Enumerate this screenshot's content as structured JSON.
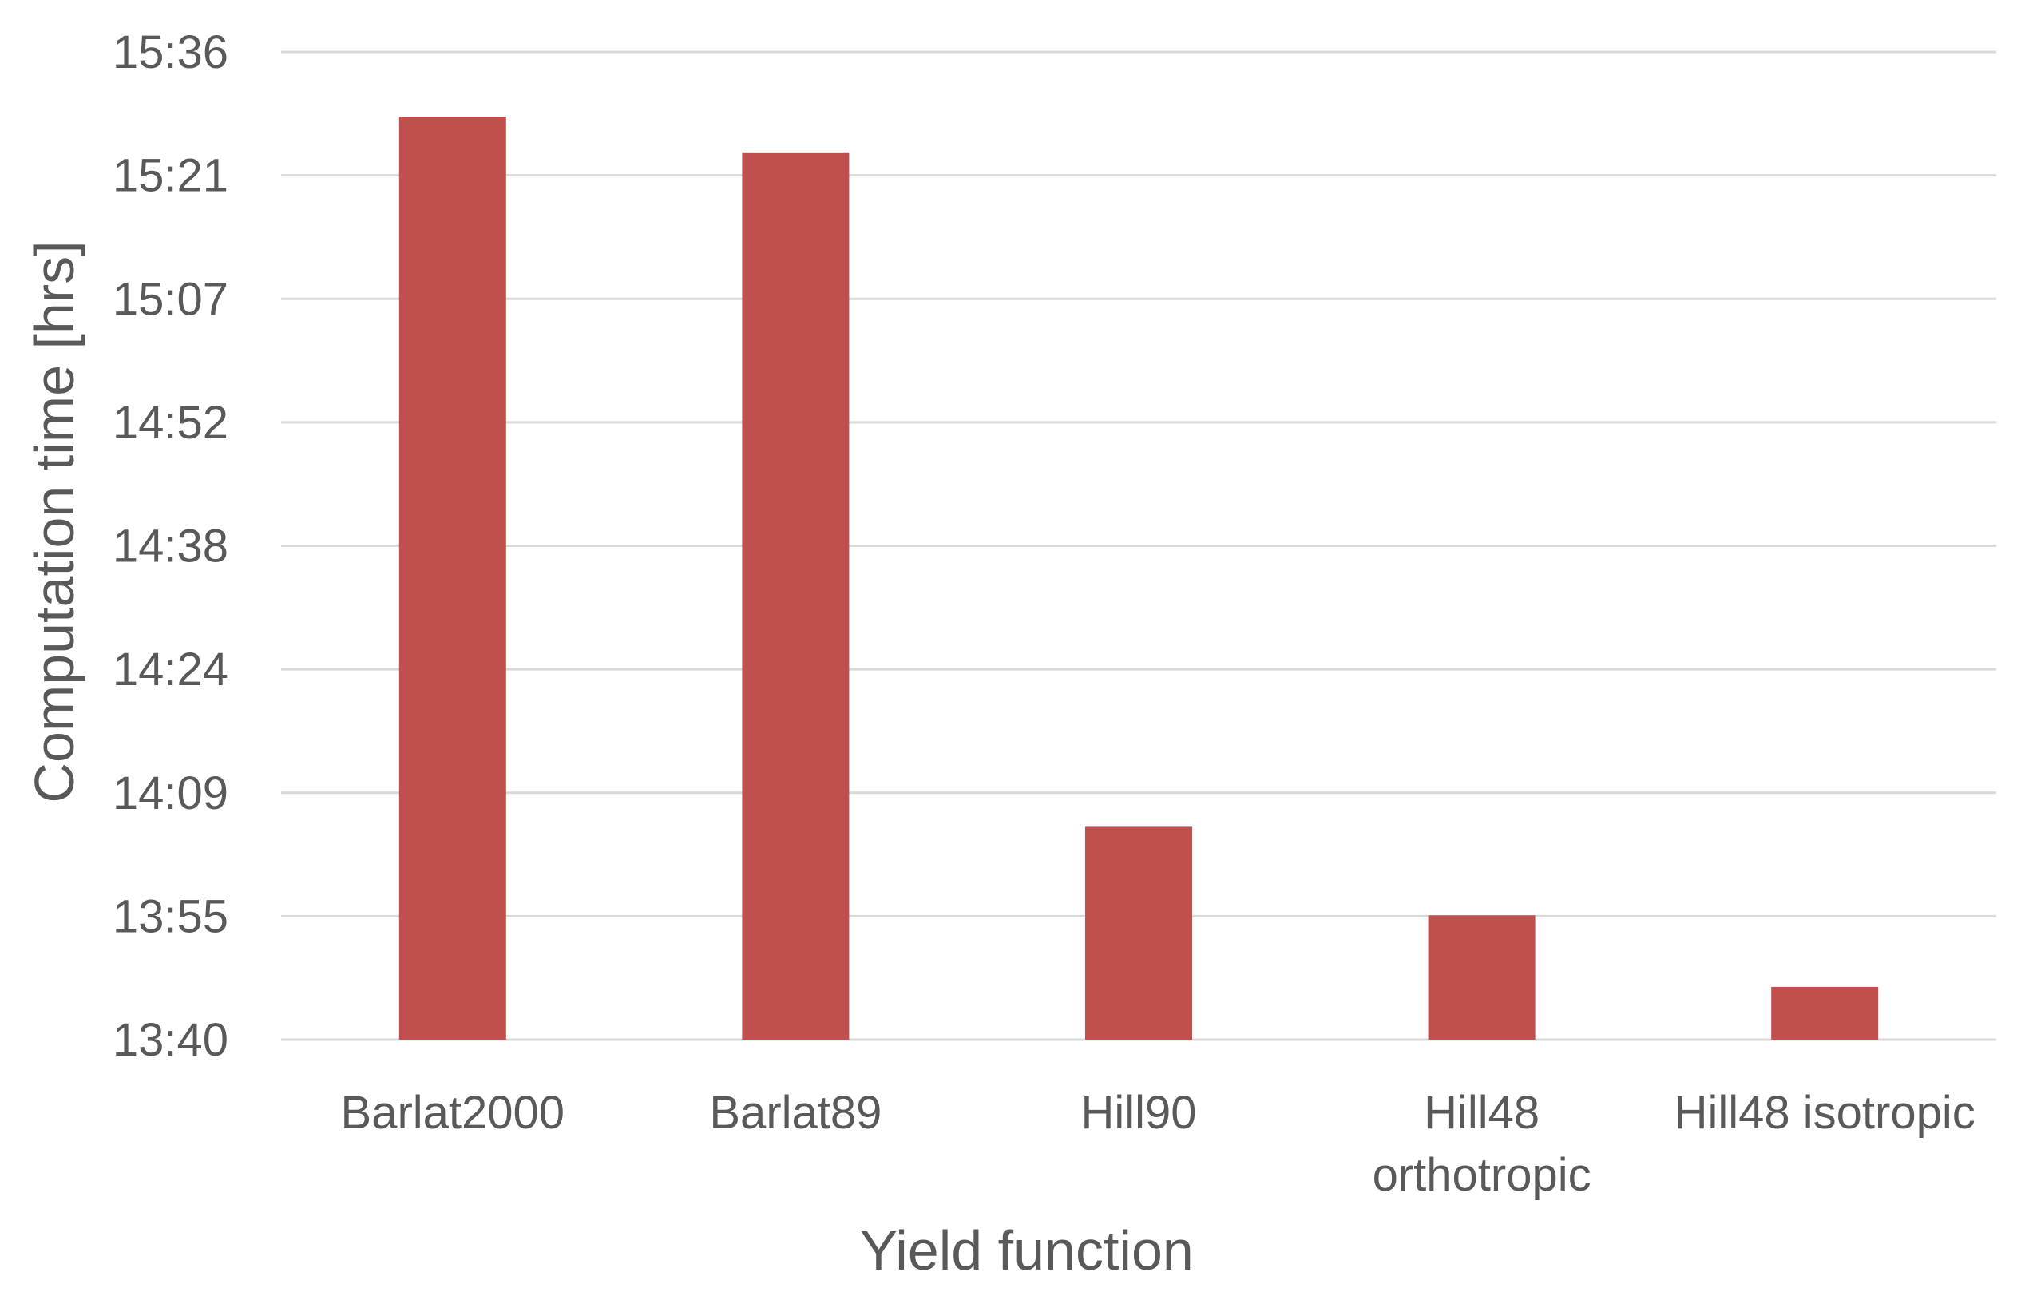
{
  "chart_data": {
    "type": "bar",
    "title": "",
    "xlabel": "Yield function",
    "ylabel": "Computation time [hrs]",
    "categories": [
      [
        "Barlat2000"
      ],
      [
        "Barlat89"
      ],
      [
        "Hill90"
      ],
      [
        "Hill48",
        "orthotropic"
      ],
      [
        "Hill48 isotropic"
      ]
    ],
    "category_names": [
      "Barlat2000",
      "Barlat89",
      "Hill90",
      "Hill48 orthotropic",
      "Hill48 isotropic"
    ],
    "values_minutes": [
      928.4,
      924.2,
      845.0,
      834.6,
      826.2
    ],
    "values": [
      "15:28",
      "15:24",
      "14:05",
      "13:55",
      "13:46"
    ],
    "ylim_minutes": [
      820,
      936
    ],
    "yticks_minutes": [
      820,
      834.5,
      849,
      863.5,
      878,
      892.5,
      907,
      921.5,
      936
    ],
    "ytick_labels": [
      "13:40",
      "13:55",
      "14:09",
      "14:24",
      "14:38",
      "14:52",
      "15:07",
      "15:21",
      "15:36"
    ],
    "grid": true,
    "legend": "none",
    "bar_color": "#c0504d",
    "grid_color": "#d9d9d9",
    "text_color": "#595959"
  }
}
